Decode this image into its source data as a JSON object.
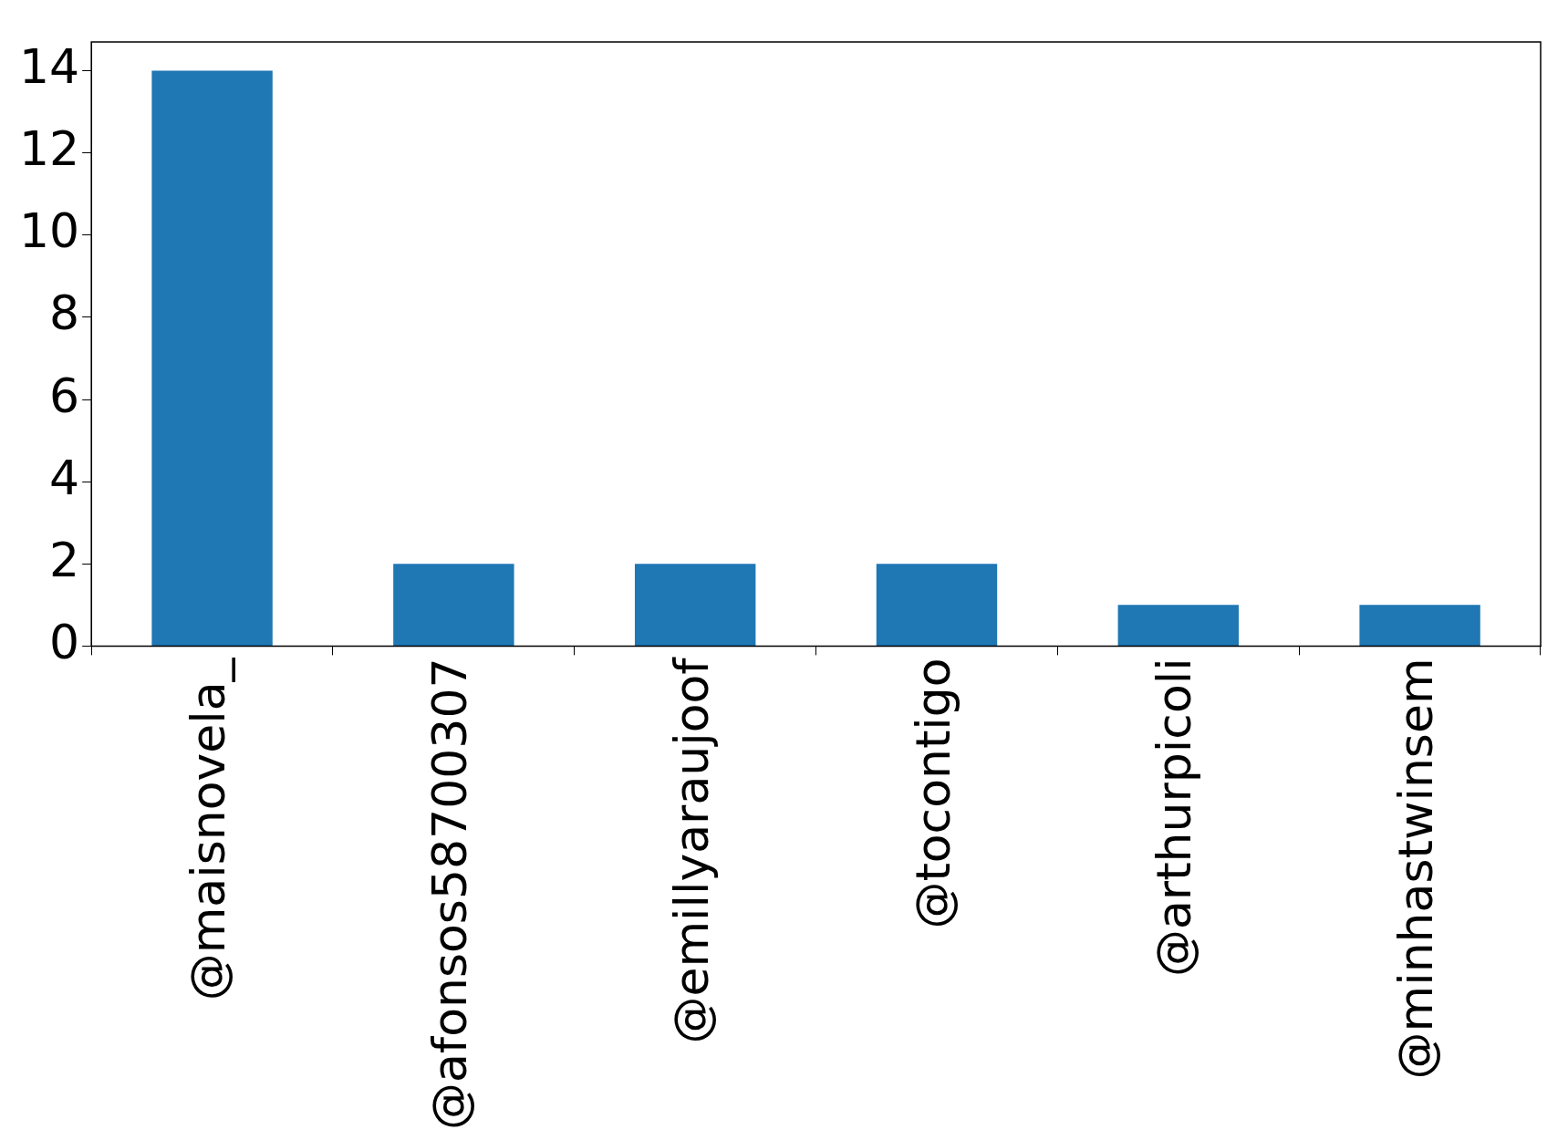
{
  "chart_data": {
    "type": "bar",
    "categories": [
      "@maisnovela_",
      "@afonsos58700307",
      "@emillyaraujoof",
      "@tocontigo",
      "@arthurpicoli",
      "@minhastwinsem"
    ],
    "values": [
      14,
      2,
      2,
      2,
      1,
      1
    ],
    "color": "#1f77b4",
    "ylim": [
      0,
      14.7
    ],
    "yticks": [
      0,
      2,
      4,
      6,
      8,
      10,
      12,
      14
    ],
    "grid": false,
    "legend": false
  }
}
